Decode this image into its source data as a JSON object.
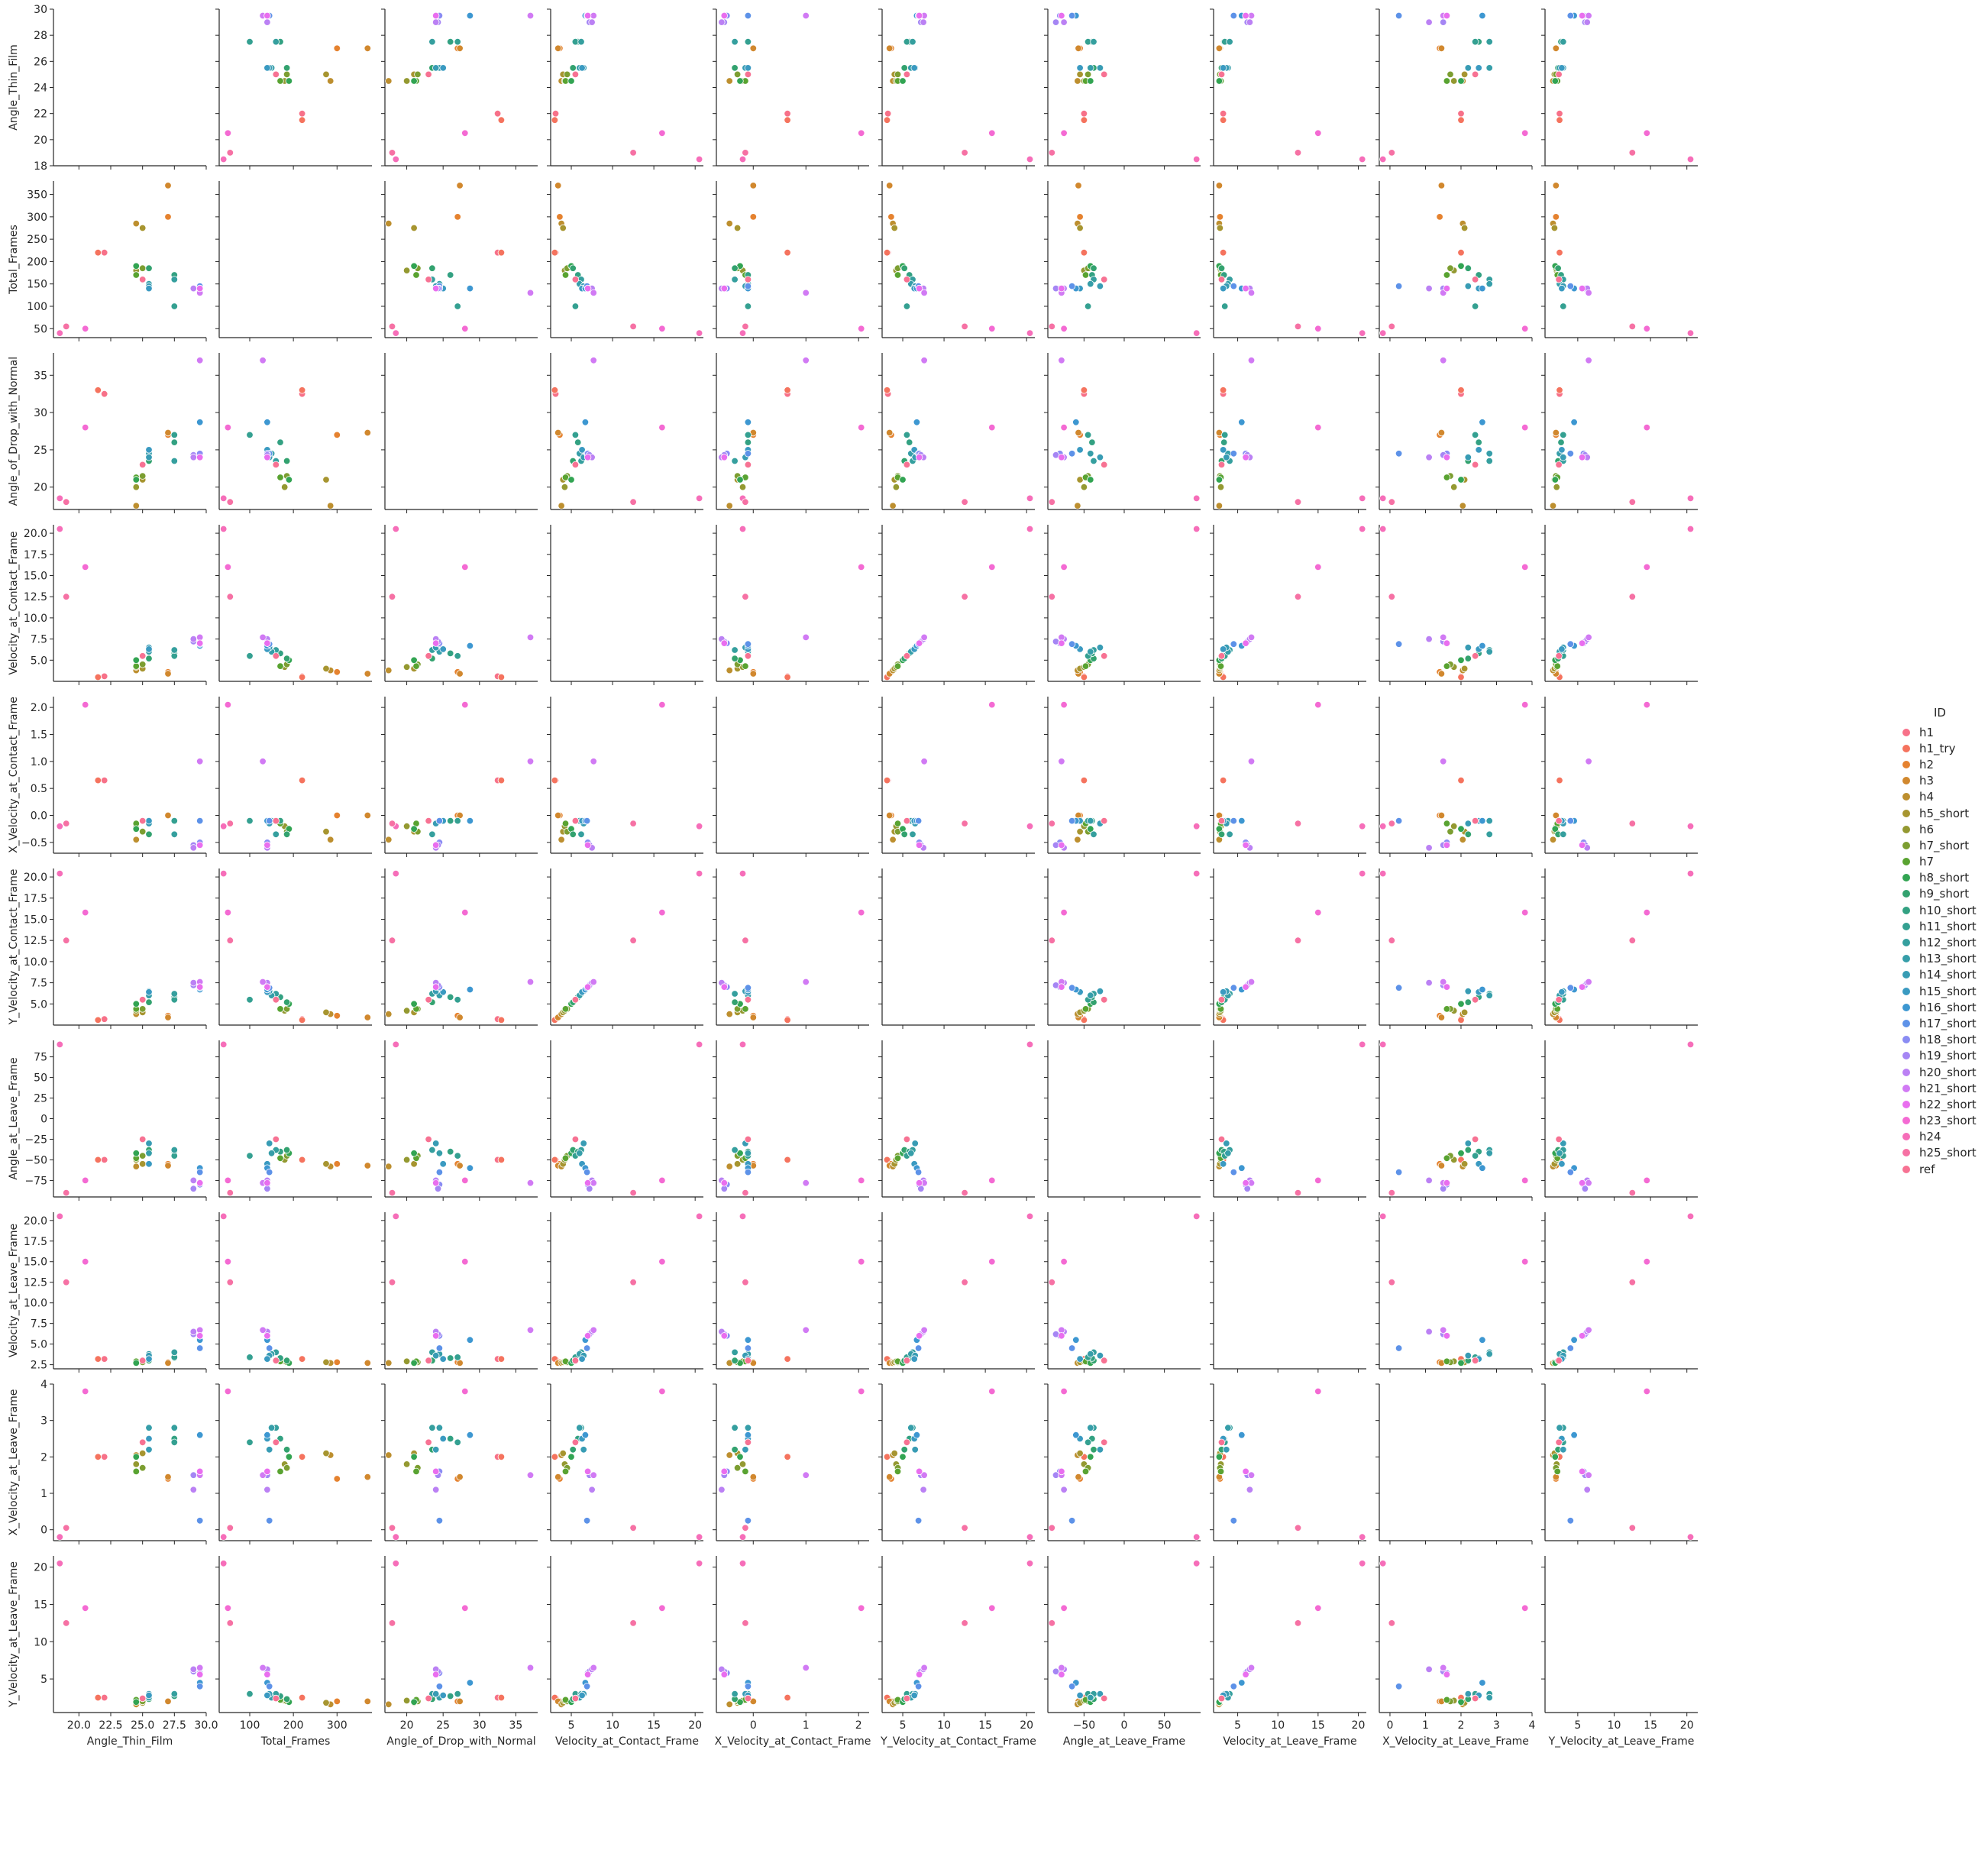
{
  "chart_data": {
    "type": "scatter",
    "title": "",
    "variables": [
      "Angle_Thin_Film",
      "Total_Frames",
      "Angle_of_Drop_with_Normal",
      "Velocity_at_Contact_Frame",
      "X_Velocity_at_Contact_Frame",
      "Y_Velocity_at_Contact_Frame",
      "Angle_at_Leave_Frame",
      "Velocity_at_Leave_Frame",
      "X_Velocity_at_Leave_Frame",
      "Y_Velocity_at_Leave_Frame"
    ],
    "axis_ranges": [
      [
        18,
        30
      ],
      [
        30,
        380
      ],
      [
        17,
        38
      ],
      [
        2.5,
        21
      ],
      [
        -0.7,
        2.2
      ],
      [
        2.5,
        21
      ],
      [
        -95,
        95
      ],
      [
        2,
        21
      ],
      [
        -0.3,
        4
      ],
      [
        0.5,
        21.5
      ]
    ],
    "row_ticks": [
      [
        18,
        20,
        22,
        24,
        26,
        28,
        30
      ],
      [
        50,
        100,
        150,
        200,
        250,
        300,
        350
      ],
      [
        20,
        25,
        30,
        35
      ],
      [
        5.0,
        7.5,
        10.0,
        12.5,
        15.0,
        17.5,
        20.0
      ],
      [
        -0.5,
        0.0,
        0.5,
        1.0,
        1.5,
        2.0
      ],
      [
        5.0,
        7.5,
        10.0,
        12.5,
        15.0,
        17.5,
        20.0
      ],
      [
        -75,
        -50,
        -25,
        0,
        25,
        50,
        75
      ],
      [
        2.5,
        5.0,
        7.5,
        10.0,
        12.5,
        15.0,
        17.5,
        20.0
      ],
      [
        0,
        1,
        2,
        3,
        4
      ],
      [
        5,
        10,
        15,
        20
      ]
    ],
    "col_ticks": [
      [
        20.0,
        22.5,
        25.0,
        27.5,
        30.0
      ],
      [
        100,
        200,
        300
      ],
      [
        20,
        25,
        30,
        35
      ],
      [
        5,
        10,
        15,
        20
      ],
      [
        0,
        1,
        2
      ],
      [
        5,
        10,
        15,
        20
      ],
      [
        -50,
        0,
        50
      ],
      [
        5,
        10,
        15,
        20
      ],
      [
        0,
        1,
        2,
        3,
        4
      ],
      [
        5,
        10,
        15,
        20
      ]
    ],
    "row_tick_labels": [
      [
        "18",
        "20",
        "22",
        "24",
        "26",
        "28",
        "30"
      ],
      [
        "50",
        "100",
        "150",
        "200",
        "250",
        "300",
        "350"
      ],
      [
        "20",
        "25",
        "30",
        "35"
      ],
      [
        "5.0",
        "7.5",
        "10.0",
        "12.5",
        "15.0",
        "17.5",
        "20.0"
      ],
      [
        "−0.5",
        "0.0",
        "0.5",
        "1.0",
        "1.5",
        "2.0"
      ],
      [
        "5.0",
        "7.5",
        "10.0",
        "12.5",
        "15.0",
        "17.5",
        "20.0"
      ],
      [
        "−75",
        "−50",
        "−25",
        "0",
        "25",
        "50",
        "75"
      ],
      [
        "2.5",
        "5.0",
        "7.5",
        "10.0",
        "12.5",
        "15.0",
        "17.5",
        "20.0"
      ],
      [
        "0",
        "1",
        "2",
        "3",
        "4"
      ],
      [
        "5",
        "10",
        "15",
        "20"
      ]
    ],
    "col_tick_labels": [
      [
        "20.0",
        "22.5",
        "25.0",
        "27.5",
        "30.0"
      ],
      [
        "100",
        "200",
        "300"
      ],
      [
        "20",
        "25",
        "30",
        "35"
      ],
      [
        "5",
        "10",
        "15",
        "20"
      ],
      [
        "0",
        "1",
        "2"
      ],
      [
        "5",
        "10",
        "15",
        "20"
      ],
      [
        "−50",
        "0",
        "50"
      ],
      [
        "5",
        "10",
        "15",
        "20"
      ],
      [
        "0",
        "1",
        "2",
        "3",
        "4"
      ],
      [
        "5",
        "10",
        "15",
        "20"
      ]
    ],
    "diagonal_empty": true,
    "grid": false,
    "legend": {
      "title": "ID",
      "placement": "right"
    },
    "series": [
      {
        "name": "h1",
        "color": "#f77189",
        "values": [
          22.0,
          220,
          32.5,
          3.1,
          0.65,
          3.2,
          -50,
          3.2,
          2.0,
          2.5
        ]
      },
      {
        "name": "h1_try",
        "color": "#f5735e",
        "values": [
          21.5,
          220,
          33.0,
          3.0,
          0.65,
          3.1,
          -50,
          3.2,
          2.0,
          2.5
        ]
      },
      {
        "name": "h2",
        "color": "#e5822f",
        "values": [
          27.0,
          300,
          27.0,
          3.6,
          0.0,
          3.6,
          -55,
          2.8,
          1.4,
          2.0
        ]
      },
      {
        "name": "h3",
        "color": "#d1882e",
        "values": [
          27.0,
          370,
          27.3,
          3.4,
          0.0,
          3.4,
          -57,
          2.7,
          1.45,
          2.0
        ]
      },
      {
        "name": "h4",
        "color": "#bd8f2f",
        "values": [
          24.5,
          285,
          17.5,
          3.8,
          -0.45,
          3.8,
          -58,
          2.7,
          2.05,
          1.6
        ]
      },
      {
        "name": "h5_short",
        "color": "#a79530",
        "values": [
          25.0,
          275,
          21.0,
          4.0,
          -0.3,
          4.0,
          -55,
          2.8,
          2.1,
          1.8
        ]
      },
      {
        "name": "h6",
        "color": "#949931",
        "values": [
          24.5,
          180,
          20.0,
          4.2,
          -0.2,
          4.2,
          -50,
          2.9,
          1.8,
          2.1
        ]
      },
      {
        "name": "h7_short",
        "color": "#7c9e31",
        "values": [
          25.0,
          185,
          21.5,
          4.5,
          -0.3,
          4.4,
          -45,
          2.8,
          1.7,
          2.0
        ]
      },
      {
        "name": "h7",
        "color": "#59a331",
        "values": [
          24.5,
          170,
          21.3,
          4.3,
          -0.15,
          4.4,
          -48,
          2.9,
          1.6,
          2.2
        ]
      },
      {
        "name": "h8_short",
        "color": "#32a452",
        "values": [
          24.5,
          190,
          21.0,
          5.0,
          -0.25,
          5.0,
          -42,
          2.7,
          2.0,
          1.9
        ]
      },
      {
        "name": "h9_short",
        "color": "#33a26f",
        "values": [
          25.5,
          185,
          23.5,
          5.2,
          -0.35,
          5.2,
          -38,
          3.0,
          2.2,
          2.3
        ]
      },
      {
        "name": "h10_short",
        "color": "#33a182",
        "values": [
          27.5,
          170,
          26.0,
          5.8,
          -0.1,
          5.8,
          -40,
          3.3,
          2.5,
          2.7
        ]
      },
      {
        "name": "h11_short",
        "color": "#34a091",
        "values": [
          27.5,
          100,
          27.0,
          5.5,
          -0.1,
          5.5,
          -45,
          3.4,
          2.4,
          3.0
        ]
      },
      {
        "name": "h12_short",
        "color": "#359f9e",
        "values": [
          27.5,
          160,
          23.5,
          6.2,
          -0.35,
          6.2,
          -38,
          4.0,
          2.8,
          3.0
        ]
      },
      {
        "name": "h13_short",
        "color": "#369ea9",
        "values": [
          25.5,
          150,
          24.5,
          6.0,
          -0.1,
          6.0,
          -42,
          3.8,
          2.8,
          2.5
        ]
      },
      {
        "name": "h14_short",
        "color": "#389cb4",
        "values": [
          25.5,
          145,
          24.0,
          6.5,
          -0.15,
          6.5,
          -30,
          3.6,
          2.2,
          3.0
        ]
      },
      {
        "name": "h15_short",
        "color": "#3a9ac1",
        "values": [
          25.5,
          140,
          25.0,
          6.3,
          -0.1,
          6.4,
          -55,
          3.2,
          2.5,
          2.8
        ]
      },
      {
        "name": "h16_short",
        "color": "#3d97d1",
        "values": [
          29.5,
          140,
          28.7,
          6.7,
          -0.1,
          6.7,
          -60,
          5.5,
          2.6,
          4.5
        ]
      },
      {
        "name": "h17_short",
        "color": "#5d92e8",
        "values": [
          29.5,
          145,
          24.5,
          6.9,
          -0.1,
          6.9,
          -65,
          4.5,
          0.25,
          4.0
        ]
      },
      {
        "name": "h18_short",
        "color": "#8a8cf3",
        "values": [
          29.5,
          140,
          24.5,
          7.0,
          -0.5,
          7.0,
          -80,
          6.0,
          1.6,
          5.8
        ]
      },
      {
        "name": "h19_short",
        "color": "#a586f4",
        "values": [
          29.0,
          140,
          24.3,
          7.2,
          -0.55,
          7.2,
          -85,
          6.2,
          1.5,
          6.0
        ]
      },
      {
        "name": "h20_short",
        "color": "#bb81f4",
        "values": [
          29.0,
          140,
          24.0,
          7.5,
          -0.6,
          7.5,
          -75,
          6.5,
          1.1,
          6.3
        ]
      },
      {
        "name": "h21_short",
        "color": "#d17af4",
        "values": [
          29.5,
          130,
          37.0,
          7.7,
          1.0,
          7.6,
          -78,
          6.7,
          1.5,
          6.5
        ]
      },
      {
        "name": "h22_short",
        "color": "#e96eef",
        "values": [
          29.5,
          140,
          24.0,
          7.0,
          -0.55,
          7.0,
          -78,
          6.0,
          1.6,
          5.6
        ]
      },
      {
        "name": "h23_short",
        "color": "#f46ad3",
        "values": [
          20.5,
          50,
          28.0,
          16.0,
          2.05,
          15.8,
          -75,
          15.0,
          3.8,
          14.5
        ]
      },
      {
        "name": "h24",
        "color": "#f66eb9",
        "values": [
          18.5,
          40,
          18.5,
          20.5,
          -0.2,
          20.4,
          90,
          20.5,
          -0.2,
          20.5
        ]
      },
      {
        "name": "h25_short",
        "color": "#f671a4",
        "values": [
          19.0,
          55,
          18.0,
          12.5,
          -0.15,
          12.5,
          -90,
          12.5,
          0.05,
          12.5
        ]
      },
      {
        "name": "ref",
        "color": "#f77293",
        "values": [
          25.0,
          160,
          23.0,
          5.5,
          -0.1,
          5.5,
          -25,
          3.0,
          2.4,
          2.4
        ]
      }
    ]
  }
}
